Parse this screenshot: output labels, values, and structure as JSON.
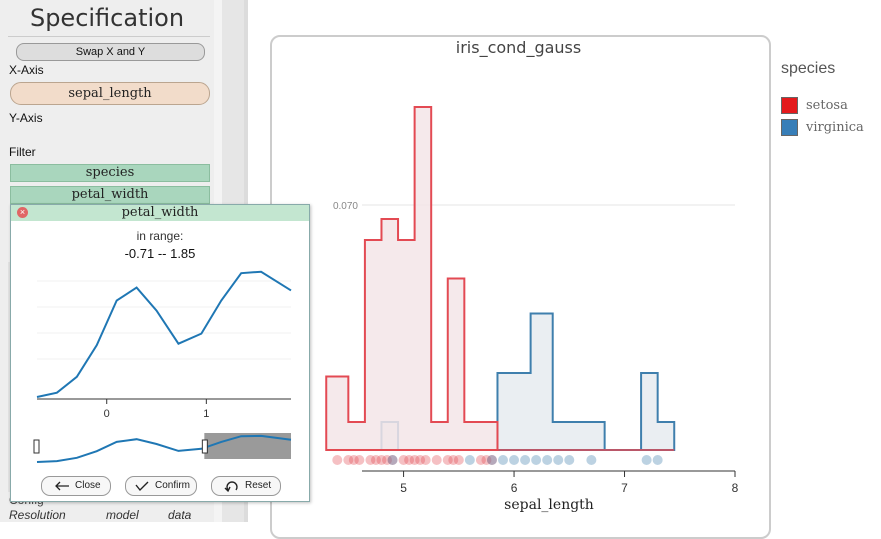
{
  "spec_panel": {
    "title": "Specification",
    "swap_button": "Swap X and Y",
    "x_axis_label": "X-Axis",
    "x_field": "sepal_length",
    "y_axis_label": "Y-Axis",
    "filter_label": "Filter",
    "filters": [
      "species",
      "petal_width"
    ],
    "config_label": "Config",
    "bottom_labels": [
      "Resolution",
      "model",
      "data"
    ]
  },
  "chart": {
    "title": "iris_cond_gauss",
    "legend_title": "species",
    "colors": {
      "setosa": "#e34a53",
      "virginica": "#3f7fad",
      "setosa_fill": "#f3e5e7",
      "virginica_fill": "#e6ebf0"
    },
    "legend": [
      {
        "label": "setosa",
        "color": "#e41a1c"
      },
      {
        "label": "virginica",
        "color": "#377eb8"
      }
    ]
  },
  "chart_data": {
    "type": "area",
    "title": "iris_cond_gauss",
    "xlabel": "sepal_length",
    "ylabel": "",
    "xlim": [
      3.8,
      8
    ],
    "ylim": [
      0,
      0.1
    ],
    "x_ticks": [
      5,
      6,
      7,
      8
    ],
    "y_ticks": [
      0.07
    ],
    "y_tick_labels": [
      "0.070"
    ],
    "series": [
      {
        "name": "setosa",
        "edges": [
          4.3,
          4.5,
          4.65,
          4.8,
          4.95,
          5.1,
          5.25,
          5.4,
          5.55,
          5.85
        ],
        "values": [
          0.021,
          0.008,
          0.06,
          0.066,
          0.06,
          0.098,
          0.008,
          0.049,
          0.008
        ]
      },
      {
        "name": "virginica",
        "edges": [
          4.8,
          4.95,
          5.85,
          6.15,
          6.35,
          6.82,
          7.15,
          7.3,
          7.45
        ],
        "values": [
          0.008,
          0,
          0.022,
          0.039,
          0.008,
          0,
          0.022,
          0.008
        ]
      }
    ],
    "rug": {
      "setosa": [
        4.4,
        4.5,
        4.55,
        4.6,
        4.7,
        4.75,
        4.8,
        4.85,
        4.9,
        5.0,
        5.05,
        5.1,
        5.15,
        5.2,
        5.3,
        5.4,
        5.45,
        5.5,
        5.7,
        5.75,
        5.8
      ],
      "virginica": [
        4.9,
        5.6,
        5.8,
        5.9,
        6.0,
        6.1,
        6.2,
        6.3,
        6.4,
        6.5,
        6.7,
        7.2,
        7.3
      ]
    }
  },
  "filter_popup": {
    "title": "petal_width",
    "range_label": "in range:",
    "range_value": "-0.71 -- 1.85",
    "density_x_ticks": [
      0,
      1
    ],
    "density_xlim": [
      -0.7,
      1.85
    ],
    "density_ylim": [
      0,
      1
    ],
    "density_x": [
      -0.7,
      -0.5,
      -0.3,
      -0.1,
      0.1,
      0.3,
      0.5,
      0.72,
      0.95,
      1.15,
      1.35,
      1.55,
      1.85
    ],
    "density_y": [
      0.0,
      0.03,
      0.14,
      0.36,
      0.67,
      0.76,
      0.6,
      0.37,
      0.44,
      0.67,
      0.86,
      0.87,
      0.74
    ],
    "selection_start": 0.98,
    "buttons": {
      "close": "Close",
      "confirm": "Confirm",
      "reset": "Reset"
    }
  }
}
